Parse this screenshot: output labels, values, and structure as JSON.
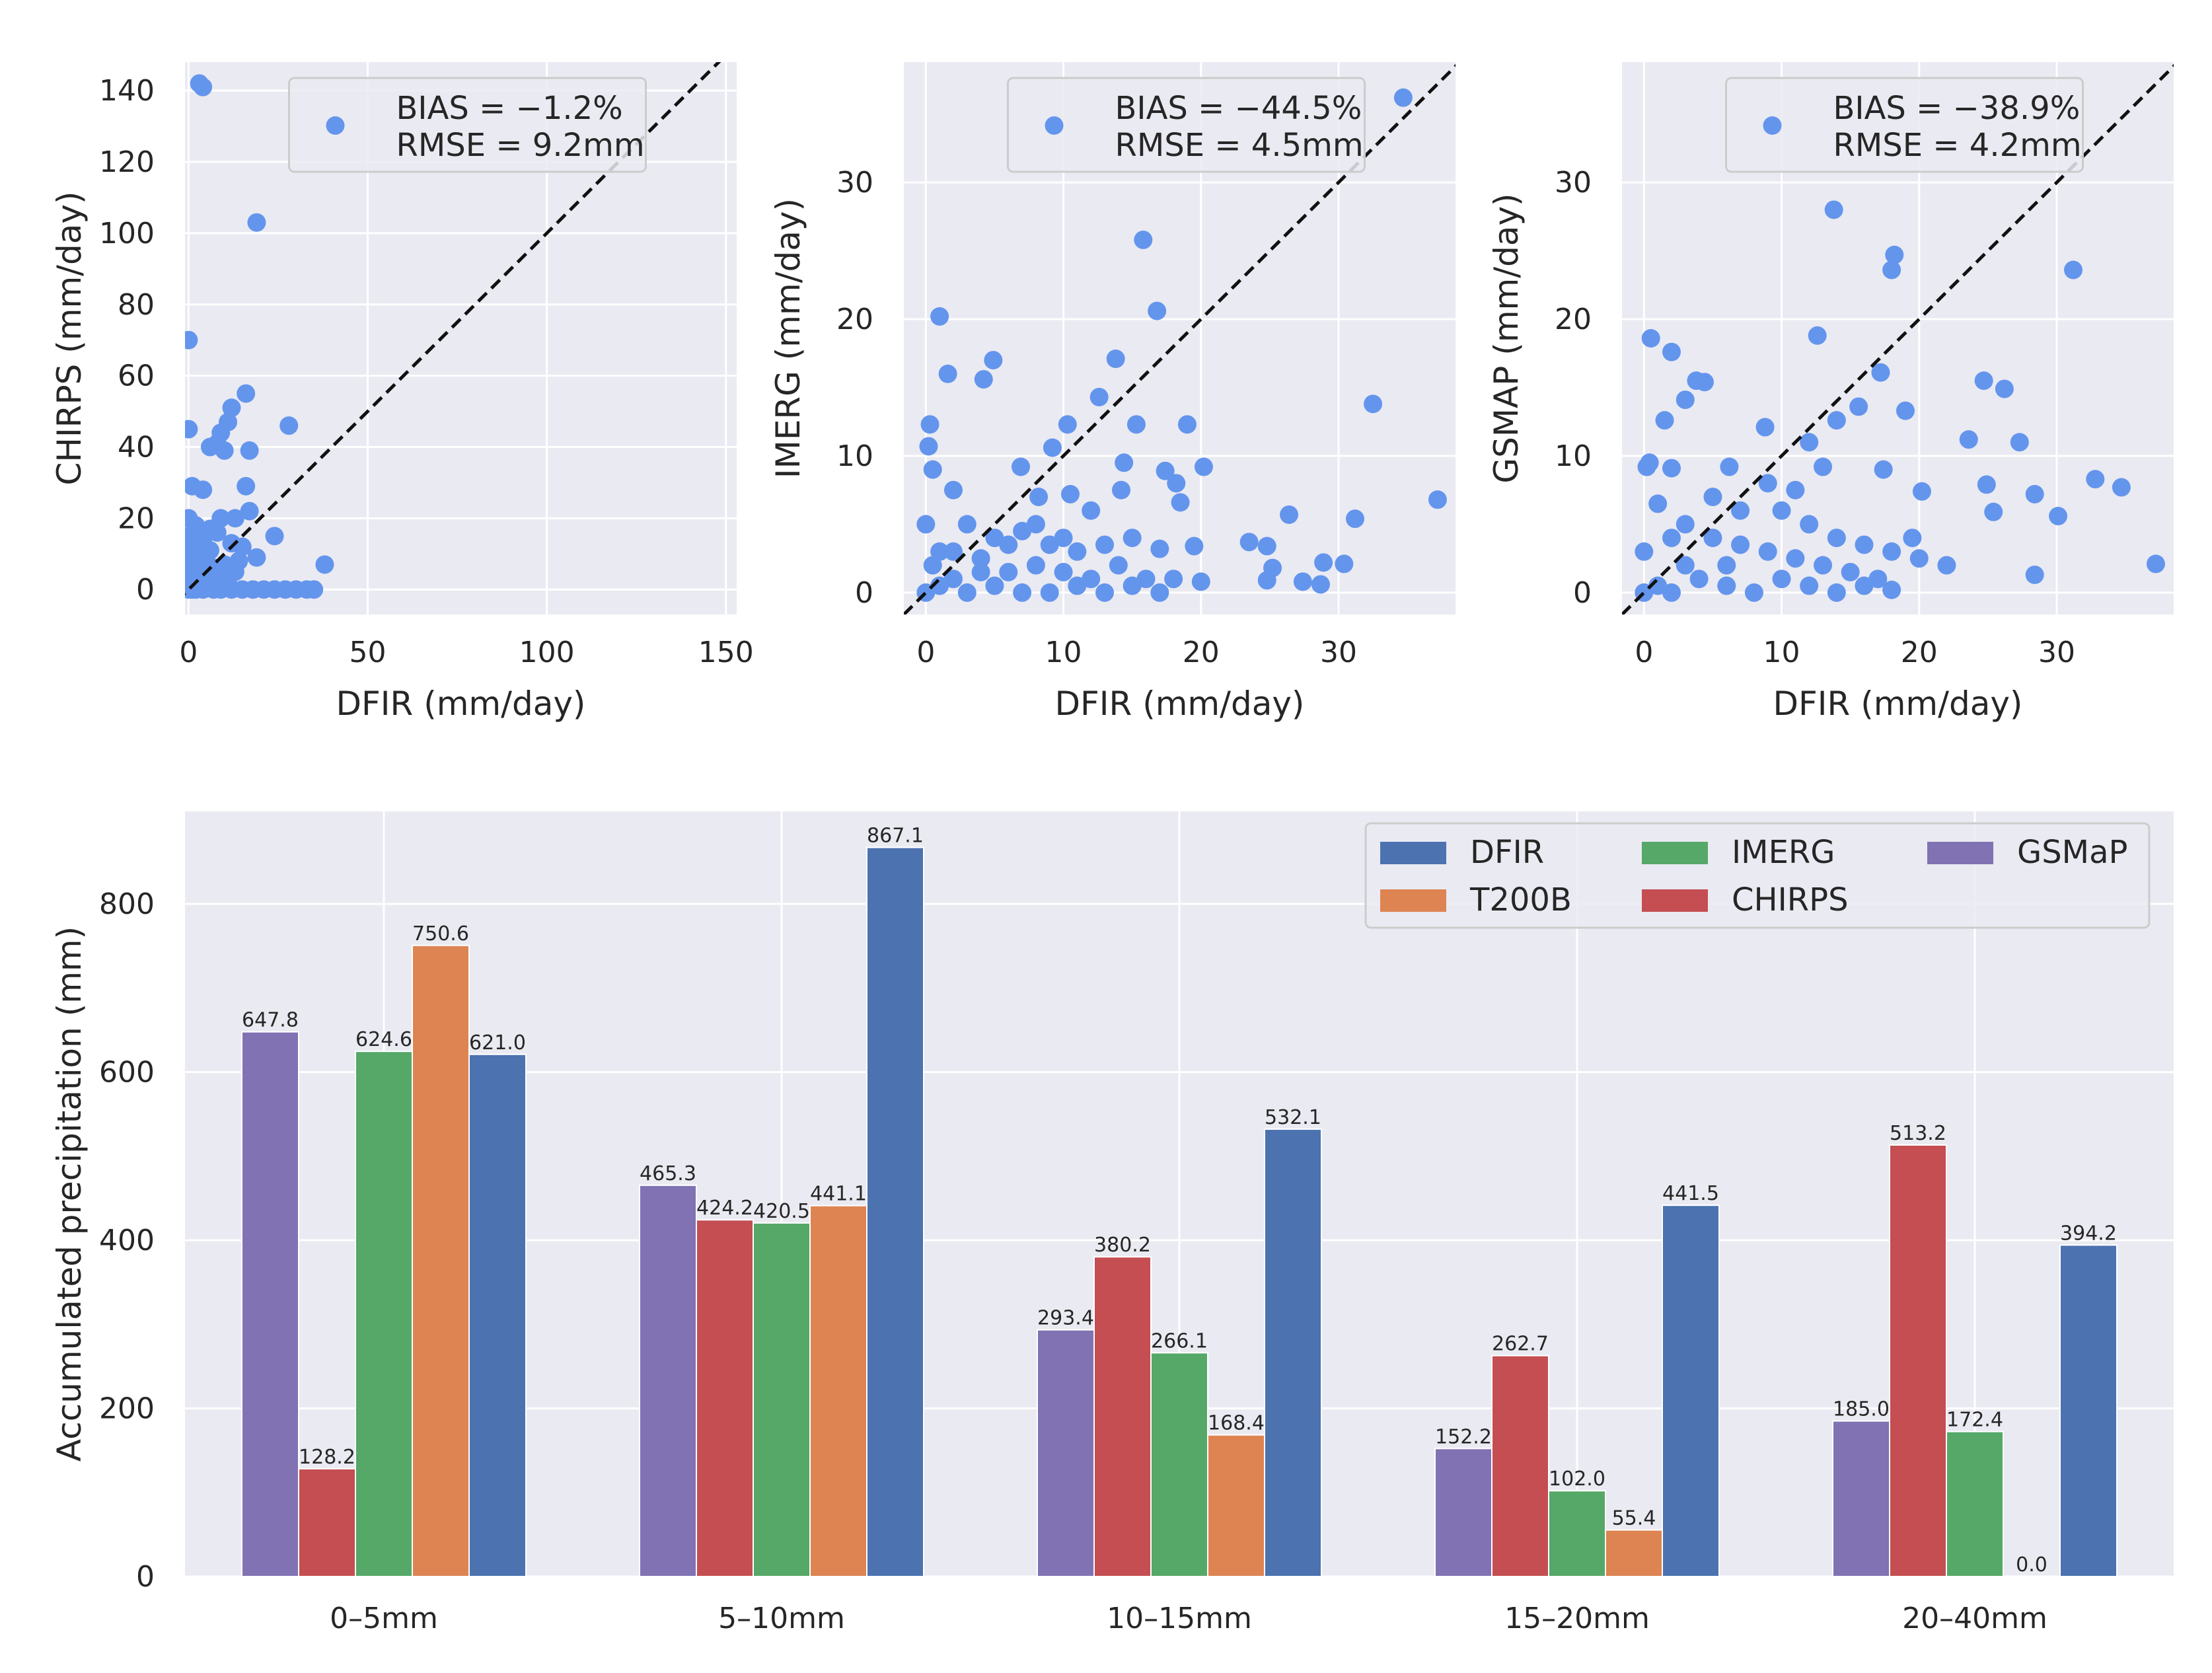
{
  "chart_data": [
    {
      "type": "scatter",
      "id": "chirps",
      "xlabel": "DFIR (mm/day)",
      "ylabel": "CHIRPS (mm/day)",
      "xlim": [
        -1,
        153
      ],
      "ylim": [
        -7,
        148
      ],
      "xticks": [
        0,
        50,
        100,
        150
      ],
      "yticks": [
        0,
        20,
        40,
        60,
        80,
        100,
        120,
        140
      ],
      "legend": {
        "location": "top-center",
        "lines": [
          "BIAS = −1.2%",
          "RMSE = 9.2mm"
        ]
      },
      "marker_color": "#6495ed",
      "points": [
        [
          3,
          142
        ],
        [
          4,
          141
        ],
        [
          19,
          103
        ],
        [
          0,
          70
        ],
        [
          0,
          45
        ],
        [
          16,
          55
        ],
        [
          28,
          46
        ],
        [
          12,
          51
        ],
        [
          11,
          47
        ],
        [
          9,
          44
        ],
        [
          8,
          41
        ],
        [
          6,
          40
        ],
        [
          10,
          39
        ],
        [
          17,
          39
        ],
        [
          1,
          29
        ],
        [
          4,
          28
        ],
        [
          16,
          29
        ],
        [
          0,
          20
        ],
        [
          2,
          18
        ],
        [
          6,
          17
        ],
        [
          9,
          20
        ],
        [
          13,
          20
        ],
        [
          17,
          22
        ],
        [
          0,
          15
        ],
        [
          4,
          14
        ],
        [
          8,
          16
        ],
        [
          12,
          13
        ],
        [
          15,
          12
        ],
        [
          24,
          15
        ],
        [
          1,
          10
        ],
        [
          3,
          9
        ],
        [
          6,
          11
        ],
        [
          10,
          7
        ],
        [
          14,
          8
        ],
        [
          19,
          9
        ],
        [
          0,
          6
        ],
        [
          2,
          5
        ],
        [
          5,
          4
        ],
        [
          8,
          6
        ],
        [
          11,
          3
        ],
        [
          1,
          2
        ],
        [
          3,
          1
        ],
        [
          6,
          2
        ],
        [
          9,
          0
        ],
        [
          12,
          0
        ],
        [
          15,
          0
        ],
        [
          18,
          0
        ],
        [
          21,
          0
        ],
        [
          24,
          0
        ],
        [
          27,
          0
        ],
        [
          30,
          0
        ],
        [
          33,
          0
        ],
        [
          35,
          0
        ],
        [
          38,
          7
        ],
        [
          0,
          0
        ],
        [
          1,
          0
        ],
        [
          2,
          0
        ],
        [
          4,
          0
        ],
        [
          7,
          0
        ],
        [
          0,
          12
        ],
        [
          3,
          6
        ],
        [
          5,
          8
        ],
        [
          7,
          3
        ],
        [
          13,
          5
        ]
      ]
    },
    {
      "type": "scatter",
      "id": "imerg",
      "xlabel": "DFIR (mm/day)",
      "ylabel": "IMERG (mm/day)",
      "xlim": [
        -1.6,
        38.5
      ],
      "ylim": [
        -1.6,
        38.8
      ],
      "xticks": [
        0,
        10,
        20,
        30
      ],
      "yticks": [
        0,
        10,
        20,
        30
      ],
      "legend": {
        "location": "top-center",
        "lines": [
          "BIAS = −44.5%",
          "RMSE = 4.5mm"
        ]
      },
      "marker_color": "#6495ed",
      "points": [
        [
          34.7,
          36.2
        ],
        [
          15.8,
          25.8
        ],
        [
          1,
          20.2
        ],
        [
          16.8,
          20.6
        ],
        [
          4.9,
          17
        ],
        [
          13.8,
          17.1
        ],
        [
          1.6,
          16
        ],
        [
          4.2,
          15.6
        ],
        [
          32.5,
          13.8
        ],
        [
          12.6,
          14.3
        ],
        [
          0.3,
          12.3
        ],
        [
          10.3,
          12.3
        ],
        [
          15.3,
          12.3
        ],
        [
          19,
          12.3
        ],
        [
          0.2,
          10.7
        ],
        [
          9.2,
          10.6
        ],
        [
          20.2,
          9.2
        ],
        [
          0.5,
          9
        ],
        [
          6.9,
          9.2
        ],
        [
          17.4,
          8.9
        ],
        [
          14.4,
          9.5
        ],
        [
          18.2,
          8
        ],
        [
          2,
          7.5
        ],
        [
          8.2,
          7
        ],
        [
          10.5,
          7.2
        ],
        [
          14.2,
          7.5
        ],
        [
          18.5,
          6.6
        ],
        [
          26.4,
          5.7
        ],
        [
          31.2,
          5.4
        ],
        [
          37.2,
          6.8
        ],
        [
          12,
          6
        ],
        [
          3,
          5
        ],
        [
          5,
          4
        ],
        [
          7,
          4.5
        ],
        [
          9,
          3.5
        ],
        [
          11,
          3
        ],
        [
          13,
          3.5
        ],
        [
          15,
          4
        ],
        [
          17,
          3.2
        ],
        [
          23.5,
          3.7
        ],
        [
          24.8,
          3.4
        ],
        [
          19.5,
          3.4
        ],
        [
          25.2,
          1.8
        ],
        [
          28.9,
          2.2
        ],
        [
          30.4,
          2.1
        ],
        [
          27.4,
          0.8
        ],
        [
          28.7,
          0.6
        ],
        [
          24.8,
          0.9
        ],
        [
          20,
          0.8
        ],
        [
          2,
          3
        ],
        [
          4,
          2.5
        ],
        [
          6,
          1.5
        ],
        [
          8,
          2
        ],
        [
          10,
          1.5
        ],
        [
          12,
          1
        ],
        [
          14,
          2
        ],
        [
          16,
          1
        ],
        [
          18,
          1
        ],
        [
          0,
          0
        ],
        [
          1,
          0.5
        ],
        [
          3,
          0
        ],
        [
          5,
          0.5
        ],
        [
          7,
          0
        ],
        [
          9,
          0
        ],
        [
          11,
          0.5
        ],
        [
          13,
          0
        ],
        [
          15,
          0.5
        ],
        [
          17,
          0
        ],
        [
          0,
          5
        ],
        [
          1,
          3
        ],
        [
          2,
          1
        ],
        [
          4,
          1.5
        ],
        [
          6,
          3.5
        ],
        [
          8,
          5
        ],
        [
          10,
          4
        ],
        [
          0.5,
          2
        ]
      ]
    },
    {
      "type": "scatter",
      "id": "gsmap",
      "xlabel": "DFIR (mm/day)",
      "ylabel": "GSMAP (mm/day)",
      "xlim": [
        -1.6,
        38.5
      ],
      "ylim": [
        -1.6,
        38.8
      ],
      "xticks": [
        0,
        10,
        20,
        30
      ],
      "yticks": [
        0,
        10,
        20,
        30
      ],
      "legend": {
        "location": "top-center",
        "lines": [
          "BIAS = −38.9%",
          "RMSE = 4.2mm"
        ]
      },
      "marker_color": "#6495ed",
      "points": [
        [
          13.8,
          28
        ],
        [
          18.2,
          24.7
        ],
        [
          18,
          23.6
        ],
        [
          31.2,
          23.6
        ],
        [
          0.5,
          18.6
        ],
        [
          12.6,
          18.8
        ],
        [
          2,
          17.6
        ],
        [
          24.7,
          15.5
        ],
        [
          26.2,
          14.9
        ],
        [
          3.8,
          15.5
        ],
        [
          4.4,
          15.4
        ],
        [
          17.2,
          16.1
        ],
        [
          3,
          14.1
        ],
        [
          14,
          12.6
        ],
        [
          15.6,
          13.6
        ],
        [
          19,
          13.3
        ],
        [
          23.6,
          11.2
        ],
        [
          27.3,
          11
        ],
        [
          8.8,
          12.1
        ],
        [
          1.5,
          12.6
        ],
        [
          12,
          11
        ],
        [
          0.2,
          9.2
        ],
        [
          0.4,
          9.5
        ],
        [
          2,
          9.1
        ],
        [
          6.2,
          9.2
        ],
        [
          13,
          9.2
        ],
        [
          17.4,
          9
        ],
        [
          32.8,
          8.3
        ],
        [
          34.7,
          7.7
        ],
        [
          24.9,
          7.9
        ],
        [
          28.4,
          7.2
        ],
        [
          20.2,
          7.4
        ],
        [
          25.4,
          5.9
        ],
        [
          30.1,
          5.6
        ],
        [
          37.2,
          2.1
        ],
        [
          28.4,
          1.3
        ],
        [
          19.5,
          4
        ],
        [
          10,
          6
        ],
        [
          12,
          5
        ],
        [
          14,
          4
        ],
        [
          16,
          3.5
        ],
        [
          18,
          3
        ],
        [
          20,
          2.5
        ],
        [
          22,
          2
        ],
        [
          3,
          5
        ],
        [
          5,
          4
        ],
        [
          7,
          3.5
        ],
        [
          9,
          3
        ],
        [
          11,
          2.5
        ],
        [
          13,
          2
        ],
        [
          15,
          1.5
        ],
        [
          17,
          1
        ],
        [
          0,
          0
        ],
        [
          1,
          0.5
        ],
        [
          2,
          0
        ],
        [
          4,
          1
        ],
        [
          6,
          0.5
        ],
        [
          8,
          0
        ],
        [
          10,
          1
        ],
        [
          12,
          0.5
        ],
        [
          14,
          0
        ],
        [
          16,
          0.5
        ],
        [
          18,
          0.2
        ],
        [
          0,
          3
        ],
        [
          1,
          6.5
        ],
        [
          2,
          4
        ],
        [
          3,
          2
        ],
        [
          5,
          7
        ],
        [
          7,
          6
        ],
        [
          9,
          8
        ],
        [
          11,
          7.5
        ],
        [
          6,
          2
        ]
      ]
    },
    {
      "type": "bar",
      "id": "accumulated",
      "ylabel": "Accumulated precipitation (mm)",
      "ylim": [
        0,
        910
      ],
      "yticks": [
        0,
        200,
        400,
        600,
        800
      ],
      "categories": [
        "0–5mm",
        "5–10mm",
        "10–15mm",
        "15–20mm",
        "20–40mm"
      ],
      "series": [
        {
          "name": "GSMaP",
          "color": "#8172b3",
          "values": [
            647.8,
            465.3,
            293.4,
            152.2,
            185.0
          ]
        },
        {
          "name": "CHIRPS",
          "color": "#c44e52",
          "values": [
            128.2,
            424.2,
            380.2,
            262.7,
            513.2
          ]
        },
        {
          "name": "IMERG",
          "color": "#55a868",
          "values": [
            624.6,
            420.5,
            266.1,
            102.0,
            172.4
          ]
        },
        {
          "name": "T200B",
          "color": "#dd8452",
          "values": [
            750.6,
            441.1,
            168.4,
            55.4,
            0.0
          ]
        },
        {
          "name": "DFIR",
          "color": "#4c72b0",
          "values": [
            621.0,
            867.1,
            532.1,
            441.5,
            394.2
          ]
        }
      ],
      "value_labels": [
        [
          "647.8",
          "465.3",
          "293.4",
          "152.2",
          "185.0"
        ],
        [
          "128.2",
          "424.2",
          "380.2",
          "262.7",
          "513.2"
        ],
        [
          "624.6",
          "420.5",
          "266.1",
          "102.0",
          "172.4"
        ],
        [
          "750.6",
          "441.1",
          "168.4",
          "55.4",
          "0.0"
        ],
        [
          "621.0",
          "867.1",
          "532.1",
          "441.5",
          "394.2"
        ]
      ],
      "legend": {
        "location": "top-right",
        "columns": [
          [
            "DFIR",
            "T200B"
          ],
          [
            "IMERG",
            "CHIRPS"
          ],
          [
            "GSMaP"
          ]
        ]
      }
    }
  ]
}
